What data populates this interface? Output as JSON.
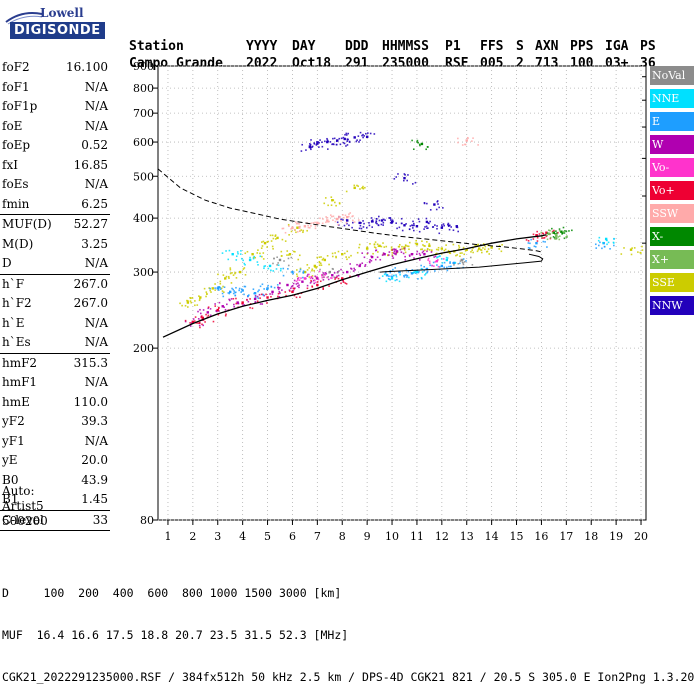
{
  "logo": {
    "top": "Lowell",
    "bottom": "DIGISONDE"
  },
  "header": {
    "labels": [
      "Station",
      "YYYY",
      "DAY",
      "DDD",
      "HHMMSS",
      "P1",
      "FFS",
      "S",
      "AXN",
      "PPS",
      "IGA",
      "PS"
    ],
    "values": [
      "Campo Grande",
      "2022",
      "Oct18",
      "291",
      "235000",
      "RSF",
      "005",
      "2",
      "713",
      "100",
      "03+",
      "36"
    ]
  },
  "params": {
    "group1": [
      {
        "label": "foF2",
        "value": "16.100"
      },
      {
        "label": "foF1",
        "value": "N/A"
      },
      {
        "label": "foF1p",
        "value": "N/A"
      },
      {
        "label": "foE",
        "value": "N/A"
      },
      {
        "label": "foEp",
        "value": "0.52"
      },
      {
        "label": "fxI",
        "value": "16.85"
      },
      {
        "label": "foEs",
        "value": "N/A"
      },
      {
        "label": "fmin",
        "value": "6.25"
      }
    ],
    "group2": [
      {
        "label": "MUF(D)",
        "value": "52.27"
      },
      {
        "label": "M(D)",
        "value": "3.25"
      },
      {
        "label": "D",
        "value": "N/A"
      }
    ],
    "group3": [
      {
        "label": "h`F",
        "value": "267.0"
      },
      {
        "label": "h`F2",
        "value": "267.0"
      },
      {
        "label": "h`E",
        "value": "N/A"
      },
      {
        "label": "h`Es",
        "value": "N/A"
      }
    ],
    "group4": [
      {
        "label": "hmF2",
        "value": "315.3"
      },
      {
        "label": "hmF1",
        "value": "N/A"
      },
      {
        "label": "hmE",
        "value": "110.0"
      },
      {
        "label": "yF2",
        "value": "39.3"
      },
      {
        "label": "yF1",
        "value": "N/A"
      },
      {
        "label": "yE",
        "value": "20.0"
      },
      {
        "label": "B0",
        "value": "43.9"
      },
      {
        "label": "B1",
        "value": "1.45"
      }
    ],
    "group5": [
      {
        "label": "C-level",
        "value": "33"
      }
    ]
  },
  "auto": {
    "line1": "Auto:",
    "line2": "Artist5",
    "line3": "500200"
  },
  "footer": {
    "line1": "D     100  200  400  600  800 1000 1500 3000 [km]",
    "line2": "MUF  16.4 16.6 17.5 18.8 20.7 23.5 31.5 52.3 [MHz]",
    "line3": "CGK21_2022291235000.RSF / 384fx512h 50 kHz 2.5 km / DPS-4D CGK21 821 / 20.5 S 305.0 E Ion2Png 1.3.20"
  },
  "legend": [
    {
      "label": "NoVal",
      "color": "#8c8c8c"
    },
    {
      "label": "NNE",
      "color": "#00e0ff"
    },
    {
      "label": "E",
      "color": "#1e9eff"
    },
    {
      "label": "W",
      "color": "#b000b0"
    },
    {
      "label": "Vo-",
      "color": "#ff33cc"
    },
    {
      "label": "Vo+",
      "color": "#ee0033"
    },
    {
      "label": "SSW",
      "color": "#ffaaaa"
    },
    {
      "label": "X-",
      "color": "#008800"
    },
    {
      "label": "X+",
      "color": "#77bb55"
    },
    {
      "label": "SSE",
      "color": "#cccc00"
    },
    {
      "label": "NNW",
      "color": "#2200bb"
    }
  ],
  "chart_data": {
    "type": "scatter",
    "xlabel": "",
    "ylabel": "",
    "x_ticks": [
      1,
      2,
      3,
      4,
      5,
      6,
      7,
      8,
      9,
      10,
      11,
      12,
      13,
      14,
      15,
      16,
      17,
      18,
      19,
      20
    ],
    "y_ticks": [
      80,
      200,
      300,
      400,
      500,
      600,
      700,
      800,
      900
    ],
    "xlim": [
      0.6,
      20.2
    ],
    "ylim": [
      80,
      900
    ],
    "y_scale": "log",
    "grid": true,
    "series": [
      {
        "name": "NNW",
        "color": "#2200bb",
        "points": [
          [
            6.7,
            586
          ],
          [
            7.0,
            595
          ],
          [
            7.4,
            600
          ],
          [
            7.8,
            605
          ],
          [
            8.1,
            610
          ],
          [
            8.5,
            615
          ],
          [
            9.0,
            617
          ],
          [
            8.2,
            395
          ],
          [
            8.7,
            390
          ],
          [
            9.2,
            393
          ],
          [
            9.6,
            395
          ],
          [
            10.0,
            392
          ],
          [
            10.5,
            385
          ],
          [
            11.0,
            383
          ],
          [
            11.4,
            392
          ],
          [
            12.0,
            380
          ],
          [
            10.5,
            495
          ],
          [
            11.7,
            430
          ],
          [
            12.6,
            383
          ]
        ]
      },
      {
        "name": "SSE",
        "color": "#cccc00",
        "points": [
          [
            1.8,
            255
          ],
          [
            2.3,
            262
          ],
          [
            2.8,
            275
          ],
          [
            3.3,
            290
          ],
          [
            3.9,
            300
          ],
          [
            4.4,
            330
          ],
          [
            4.9,
            350
          ],
          [
            5.4,
            360
          ],
          [
            5.9,
            330
          ],
          [
            6.2,
            380
          ],
          [
            6.5,
            300
          ],
          [
            6.9,
            310
          ],
          [
            7.3,
            320
          ],
          [
            7.6,
            440
          ],
          [
            8.0,
            330
          ],
          [
            8.5,
            470
          ],
          [
            9.0,
            340
          ],
          [
            9.5,
            345
          ],
          [
            10.0,
            338
          ],
          [
            10.5,
            342
          ],
          [
            11.0,
            348
          ],
          [
            11.5,
            345
          ],
          [
            12.0,
            340
          ],
          [
            12.5,
            335
          ],
          [
            13.0,
            338
          ],
          [
            13.5,
            340
          ],
          [
            14.0,
            342
          ],
          [
            19.6,
            338
          ]
        ]
      },
      {
        "name": "W",
        "color": "#b000b0",
        "points": [
          [
            2.0,
            230
          ],
          [
            2.6,
            242
          ],
          [
            3.2,
            250
          ],
          [
            3.8,
            255
          ],
          [
            4.5,
            260
          ],
          [
            5.2,
            270
          ],
          [
            5.8,
            280
          ],
          [
            6.4,
            285
          ],
          [
            7.0,
            290
          ],
          [
            7.6,
            295
          ],
          [
            8.2,
            300
          ],
          [
            8.7,
            310
          ],
          [
            9.2,
            325
          ],
          [
            9.7,
            330
          ],
          [
            10.2,
            335
          ],
          [
            10.8,
            330
          ],
          [
            11.3,
            330
          ]
        ]
      },
      {
        "name": "E",
        "color": "#1e9eff",
        "points": [
          [
            3.0,
            275
          ],
          [
            3.5,
            270
          ],
          [
            4.0,
            272
          ],
          [
            4.5,
            268
          ],
          [
            5.0,
            275
          ],
          [
            6.0,
            300
          ],
          [
            9.8,
            295
          ],
          [
            10.3,
            300
          ],
          [
            10.8,
            298
          ],
          [
            11.4,
            305
          ],
          [
            12.0,
            310
          ],
          [
            12.5,
            315
          ],
          [
            15.8,
            350
          ],
          [
            18.5,
            350
          ]
        ]
      },
      {
        "name": "NNE",
        "color": "#00e0ff",
        "points": [
          [
            3.6,
            330
          ],
          [
            4.3,
            320
          ],
          [
            5.1,
            310
          ],
          [
            10.0,
            290
          ],
          [
            11.0,
            300
          ],
          [
            12.2,
            320
          ],
          [
            18.6,
            358
          ]
        ]
      },
      {
        "name": "SSW",
        "color": "#ffaaaa",
        "points": [
          [
            6.0,
            380
          ],
          [
            6.5,
            383
          ],
          [
            7.0,
            390
          ],
          [
            7.4,
            395
          ],
          [
            7.8,
            398
          ],
          [
            8.2,
            402
          ],
          [
            13.0,
            605
          ]
        ]
      },
      {
        "name": "Vo+",
        "color": "#ee0033",
        "points": [
          [
            2.0,
            230
          ],
          [
            2.4,
            235
          ],
          [
            3.0,
            245
          ],
          [
            4.0,
            255
          ],
          [
            5.0,
            262
          ],
          [
            6.0,
            270
          ],
          [
            7.0,
            280
          ],
          [
            8.0,
            290
          ],
          [
            15.8,
            365
          ],
          [
            16.2,
            370
          ]
        ]
      },
      {
        "name": "Vo-",
        "color": "#ff33cc",
        "points": [
          [
            6.5,
            290
          ],
          [
            7.2,
            295
          ],
          [
            11.8,
            318
          ]
        ]
      },
      {
        "name": "X-",
        "color": "#008800",
        "points": [
          [
            16.5,
            370
          ],
          [
            16.8,
            372
          ],
          [
            11.2,
            594
          ]
        ]
      },
      {
        "name": "X+",
        "color": "#77bb55",
        "points": [
          [
            16.3,
            368
          ],
          [
            16.6,
            365
          ]
        ]
      },
      {
        "name": "NoVal",
        "color": "#8c8c8c",
        "points": [
          [
            5.5,
            320
          ],
          [
            7.5,
            300
          ],
          [
            12.8,
            320
          ]
        ]
      }
    ],
    "trace_ordinary": [
      [
        0.8,
        212
      ],
      [
        2.0,
        228
      ],
      [
        3.0,
        240
      ],
      [
        4.0,
        250
      ],
      [
        5.0,
        258
      ],
      [
        6.0,
        265
      ],
      [
        7.0,
        275
      ],
      [
        8.0,
        288
      ],
      [
        9.0,
        300
      ],
      [
        10.0,
        312
      ],
      [
        11.0,
        322
      ],
      [
        12.0,
        332
      ],
      [
        13.0,
        340
      ],
      [
        14.0,
        350
      ],
      [
        15.0,
        358
      ],
      [
        16.0,
        364
      ],
      [
        16.2,
        366
      ]
    ],
    "trace_profile_dashed": [
      [
        0.6,
        520
      ],
      [
        1.5,
        470
      ],
      [
        2.5,
        440
      ],
      [
        3.5,
        422
      ],
      [
        4.5,
        410
      ],
      [
        5.5,
        398
      ],
      [
        6.5,
        390
      ],
      [
        7.5,
        382
      ],
      [
        8.5,
        375
      ],
      [
        9.5,
        368
      ],
      [
        10.5,
        362
      ],
      [
        11.5,
        357
      ],
      [
        12.5,
        352
      ],
      [
        13.5,
        347
      ],
      [
        14.5,
        343
      ],
      [
        15.3,
        339
      ],
      [
        15.8,
        336
      ],
      [
        16.0,
        334
      ]
    ],
    "trace_profile_solid": [
      [
        9.5,
        300
      ],
      [
        10.5,
        302
      ],
      [
        11.5,
        304
      ],
      [
        12.5,
        306
      ],
      [
        13.5,
        308
      ],
      [
        14.5,
        312
      ],
      [
        15.3,
        315
      ],
      [
        16.0,
        318
      ],
      [
        16.05,
        322
      ],
      [
        15.9,
        326
      ],
      [
        15.5,
        330
      ]
    ]
  }
}
